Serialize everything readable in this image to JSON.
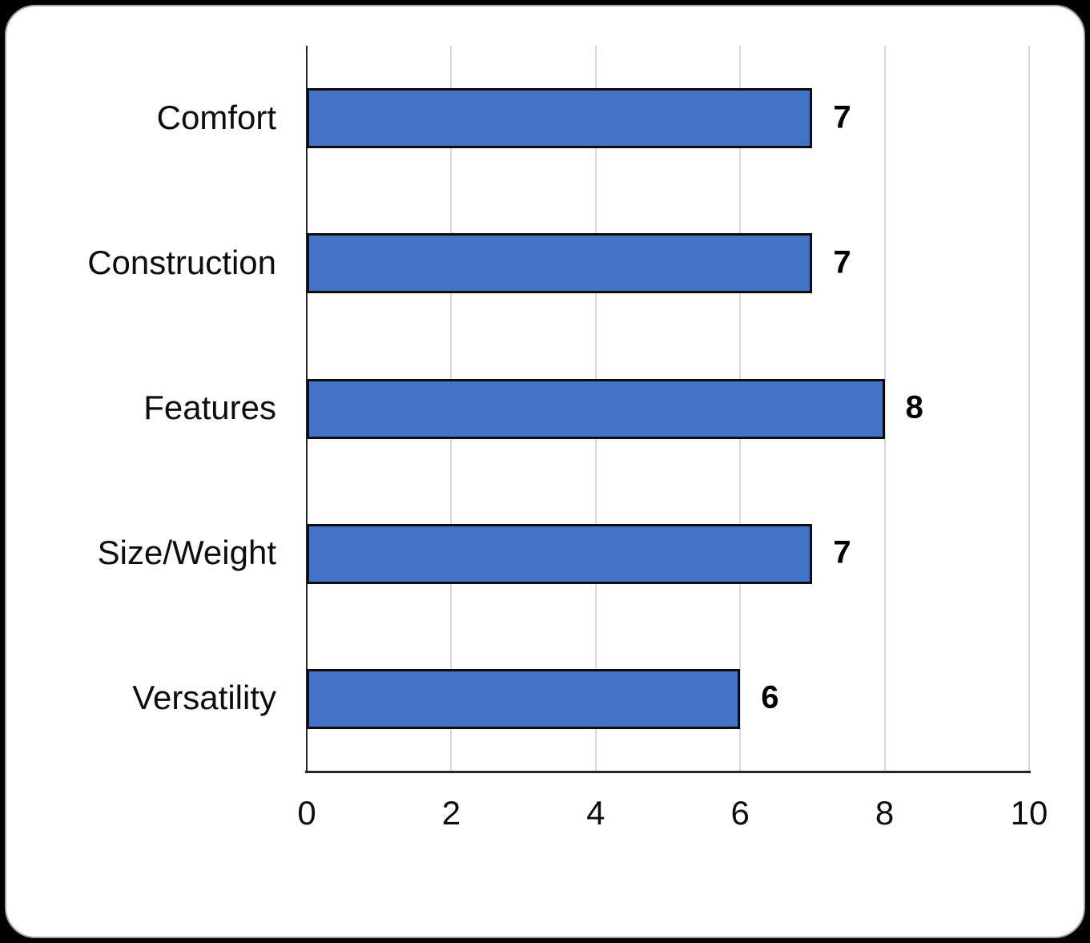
{
  "page": {
    "background_color": "#000000"
  },
  "card": {
    "background_color": "#FFFFFF",
    "border_color": "#A3A3A3"
  },
  "chart_data": {
    "type": "bar",
    "orientation": "horizontal",
    "title": "",
    "xlabel": "",
    "ylabel": "",
    "categories": [
      "Comfort",
      "Construction",
      "Features",
      "Size/Weight",
      "Versatility"
    ],
    "values": [
      7,
      7,
      8,
      7,
      6
    ],
    "data_labels": [
      "7",
      "7",
      "8",
      "7",
      "6"
    ],
    "xlim": [
      0,
      10
    ],
    "x_tick_values": [
      0,
      2,
      4,
      6,
      8,
      10
    ],
    "x_tick_labels": [
      "0",
      "2",
      "4",
      "6",
      "8",
      "10"
    ],
    "grid": "vertical gridlines at each x tick, no top frame",
    "legend": "none",
    "bar_fill_color": "#4472C4",
    "bar_border_color": "#0D0D0D",
    "gridline_color": "#D9D9D9",
    "axis_line_color": "#262626",
    "text_color": "#0D0D0D"
  }
}
